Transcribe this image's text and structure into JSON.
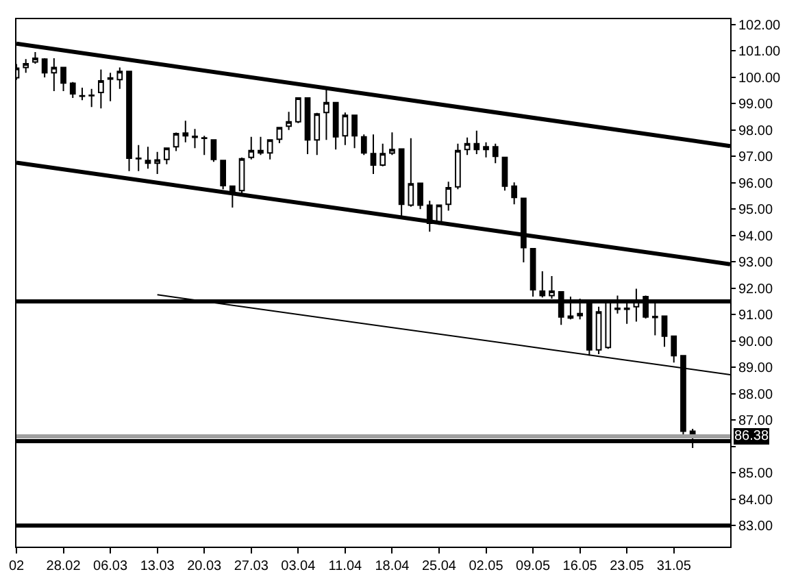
{
  "chart_data": {
    "type": "candlestick",
    "color": "#000000",
    "categories": [
      "02",
      null,
      null,
      null,
      null,
      "28.02",
      null,
      null,
      null,
      null,
      "06.03",
      null,
      null,
      null,
      null,
      "13.03",
      null,
      null,
      null,
      null,
      "20.03",
      null,
      null,
      null,
      null,
      "27.03",
      null,
      null,
      null,
      null,
      "03.04",
      null,
      null,
      null,
      null,
      "11.04",
      null,
      null,
      null,
      null,
      "18.04",
      null,
      null,
      null,
      null,
      "25.04",
      null,
      null,
      null,
      null,
      "02.05",
      null,
      null,
      null,
      null,
      "09.05",
      null,
      null,
      null,
      null,
      "16.05",
      null,
      null,
      null,
      null,
      "23.05",
      null,
      null,
      null,
      null,
      "31.05",
      null,
      null,
      null,
      null,
      null,
      null
    ],
    "ohlc": [
      [
        99.98,
        100.5,
        99.9,
        100.34
      ],
      [
        100.37,
        100.69,
        100.17,
        100.51
      ],
      [
        100.58,
        100.95,
        100.51,
        100.72
      ],
      [
        100.69,
        100.72,
        99.99,
        100.17
      ],
      [
        100.17,
        100.72,
        99.47,
        100.37
      ],
      [
        100.37,
        100.37,
        99.47,
        99.78
      ],
      [
        99.77,
        99.82,
        99.21,
        99.37
      ],
      [
        99.3,
        99.6,
        99.13,
        99.28
      ],
      [
        99.32,
        99.56,
        98.87,
        99.3
      ],
      [
        99.42,
        100.29,
        98.82,
        99.86
      ],
      [
        99.93,
        100.17,
        99.09,
        99.97
      ],
      [
        99.91,
        100.37,
        99.56,
        100.22
      ],
      [
        100.22,
        100.22,
        96.44,
        96.93
      ],
      [
        96.93,
        97.43,
        96.44,
        96.91
      ],
      [
        96.84,
        97.36,
        96.53,
        96.74
      ],
      [
        96.74,
        97.17,
        96.33,
        96.86
      ],
      [
        96.88,
        97.31,
        96.7,
        97.31
      ],
      [
        97.36,
        97.9,
        97.2,
        97.86
      ],
      [
        97.88,
        98.35,
        97.53,
        97.78
      ],
      [
        97.76,
        98.04,
        97.31,
        97.72
      ],
      [
        97.7,
        97.78,
        97.05,
        97.68
      ],
      [
        97.62,
        97.62,
        96.79,
        96.88
      ],
      [
        96.84,
        96.86,
        95.75,
        95.89
      ],
      [
        95.87,
        95.87,
        95.06,
        95.67
      ],
      [
        95.7,
        96.95,
        95.6,
        96.91
      ],
      [
        96.96,
        97.74,
        96.88,
        97.22
      ],
      [
        97.22,
        97.74,
        97.05,
        97.13
      ],
      [
        97.13,
        97.64,
        96.88,
        97.62
      ],
      [
        97.65,
        98.1,
        97.5,
        98.09
      ],
      [
        98.14,
        98.69,
        98.0,
        98.31
      ],
      [
        98.31,
        99.21,
        98.26,
        99.21
      ],
      [
        99.21,
        99.21,
        97.08,
        97.62
      ],
      [
        97.62,
        98.65,
        97.05,
        98.61
      ],
      [
        98.66,
        99.56,
        97.62,
        99.04
      ],
      [
        99.04,
        99.04,
        97.26,
        97.74
      ],
      [
        97.78,
        98.66,
        97.43,
        98.56
      ],
      [
        98.56,
        98.56,
        97.31,
        97.78
      ],
      [
        97.74,
        97.83,
        97.05,
        97.13
      ],
      [
        97.1,
        97.83,
        96.33,
        96.67
      ],
      [
        96.67,
        97.48,
        96.62,
        97.1
      ],
      [
        97.12,
        97.91,
        97.05,
        97.26
      ],
      [
        97.28,
        97.28,
        94.72,
        95.18
      ],
      [
        95.15,
        97.69,
        95.09,
        95.96
      ],
      [
        95.98,
        95.98,
        95.0,
        95.15
      ],
      [
        95.15,
        95.32,
        94.14,
        94.46
      ],
      [
        94.49,
        95.15,
        94.4,
        95.15
      ],
      [
        95.18,
        96.04,
        94.94,
        95.81
      ],
      [
        95.84,
        97.48,
        95.75,
        97.22
      ],
      [
        97.26,
        97.71,
        97.05,
        97.48
      ],
      [
        97.48,
        97.97,
        97.08,
        97.26
      ],
      [
        97.26,
        97.53,
        96.96,
        97.36
      ],
      [
        97.36,
        97.48,
        96.74,
        97.0
      ],
      [
        96.96,
        96.96,
        95.7,
        95.87
      ],
      [
        95.87,
        96.01,
        95.18,
        95.44
      ],
      [
        95.41,
        95.41,
        92.98,
        93.54
      ],
      [
        93.5,
        93.5,
        91.68,
        91.94
      ],
      [
        91.89,
        92.64,
        91.65,
        91.72
      ],
      [
        91.72,
        92.46,
        91.6,
        91.89
      ],
      [
        91.86,
        91.86,
        90.61,
        90.91
      ],
      [
        90.94,
        91.68,
        90.82,
        90.87
      ],
      [
        90.96,
        91.6,
        90.82,
        91.04
      ],
      [
        91.51,
        91.51,
        89.44,
        89.66
      ],
      [
        89.66,
        91.3,
        89.5,
        91.1
      ],
      [
        89.75,
        91.55,
        89.7,
        91.51
      ],
      [
        91.2,
        91.72,
        91.04,
        91.24
      ],
      [
        91.24,
        91.51,
        90.65,
        91.2
      ],
      [
        91.3,
        91.98,
        90.73,
        91.51
      ],
      [
        91.68,
        91.72,
        90.85,
        90.91
      ],
      [
        90.93,
        91.42,
        90.21,
        90.89
      ],
      [
        90.94,
        90.94,
        89.78,
        90.18
      ],
      [
        90.18,
        90.18,
        89.18,
        89.44
      ],
      [
        89.44,
        89.44,
        86.42,
        86.58
      ],
      [
        86.58,
        86.67,
        85.94,
        86.38
      ],
      null,
      null,
      null,
      null
    ],
    "series": [
      {
        "type": "line",
        "color": "#000000",
        "values": [
          101.27,
          null,
          null,
          null,
          null,
          null,
          null,
          null,
          null,
          null,
          null,
          null,
          null,
          null,
          null,
          null,
          null,
          null,
          null,
          null,
          null,
          null,
          null,
          null,
          null,
          null,
          null,
          null,
          null,
          null,
          null,
          null,
          null,
          null,
          null,
          null,
          null,
          null,
          null,
          null,
          null,
          null,
          null,
          null,
          null,
          null,
          null,
          null,
          null,
          null,
          null,
          null,
          null,
          null,
          null,
          null,
          null,
          null,
          null,
          null,
          null,
          null,
          null,
          null,
          null,
          null,
          null,
          null,
          null,
          null,
          null,
          null,
          null,
          null,
          null,
          null,
          97.39
        ]
      },
      {
        "type": "line",
        "color": "#000000",
        "values": [
          96.76,
          null,
          null,
          null,
          null,
          null,
          null,
          null,
          null,
          null,
          null,
          null,
          null,
          null,
          null,
          null,
          null,
          null,
          null,
          null,
          null,
          null,
          null,
          null,
          null,
          null,
          null,
          null,
          null,
          null,
          null,
          null,
          null,
          null,
          null,
          null,
          null,
          null,
          null,
          null,
          null,
          null,
          null,
          null,
          null,
          null,
          null,
          null,
          null,
          null,
          null,
          null,
          null,
          null,
          null,
          null,
          null,
          null,
          null,
          null,
          null,
          null,
          null,
          null,
          null,
          null,
          null,
          null,
          null,
          null,
          null,
          null,
          null,
          null,
          null,
          null,
          92.91
        ]
      },
      {
        "type": "line",
        "color": "#000000",
        "values": [
          null,
          null,
          null,
          null,
          null,
          null,
          null,
          null,
          null,
          null,
          null,
          null,
          null,
          null,
          null,
          91.75,
          null,
          null,
          null,
          null,
          null,
          null,
          null,
          null,
          null,
          null,
          null,
          null,
          null,
          null,
          null,
          null,
          null,
          null,
          null,
          null,
          null,
          null,
          null,
          null,
          null,
          null,
          null,
          null,
          null,
          null,
          null,
          null,
          null,
          null,
          null,
          null,
          null,
          null,
          null,
          null,
          null,
          null,
          null,
          null,
          null,
          null,
          null,
          null,
          null,
          null,
          null,
          null,
          null,
          null,
          null,
          null,
          null,
          null,
          null,
          null,
          88.72
        ]
      }
    ],
    "ref_lines": [
      {
        "axis": "y",
        "value": 91.5,
        "color": "#000000"
      },
      {
        "axis": "y",
        "value": 86.2,
        "color": "#000000"
      },
      {
        "axis": "y",
        "value": 83.0,
        "color": "#000000"
      },
      {
        "axis": "y",
        "value": 86.38,
        "label": "86.38",
        "color": "#a0a0a0"
      }
    ],
    "ylim": [
      82.2,
      102.2
    ],
    "yticks": [
      {
        "value": 83,
        "label": "83.00"
      },
      {
        "value": 84,
        "label": "84.00"
      },
      {
        "value": 85,
        "label": "85.00"
      },
      {
        "value": 86,
        "label": null
      },
      {
        "value": 87,
        "label": "87.00"
      },
      {
        "value": 88,
        "label": "88.00"
      },
      {
        "value": 89,
        "label": "89.00"
      },
      {
        "value": 90,
        "label": "90.00"
      },
      {
        "value": 91,
        "label": "91.00"
      },
      {
        "value": 92,
        "label": "92.00"
      },
      {
        "value": 93,
        "label": "93.00"
      },
      {
        "value": 94,
        "label": "94.00"
      },
      {
        "value": 95,
        "label": "95.00"
      },
      {
        "value": 96,
        "label": "96.00"
      },
      {
        "value": 97,
        "label": "97.00"
      },
      {
        "value": 98,
        "label": "98.00"
      },
      {
        "value": 99,
        "label": "99.00"
      },
      {
        "value": 100,
        "label": "100.00"
      },
      {
        "value": 101,
        "label": "101.00"
      },
      {
        "value": 102,
        "label": "102.00"
      }
    ]
  }
}
